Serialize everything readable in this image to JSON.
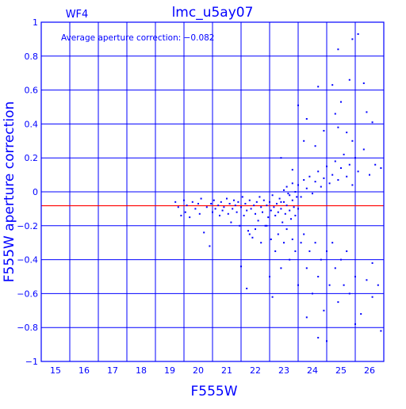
{
  "chart_data": {
    "type": "scatter",
    "title": "lmc_u5ay07",
    "chip_label": "WF4",
    "annotation": "Average aperture correction: −0.082",
    "xlabel": "F555W",
    "ylabel": "F555W aperture correction",
    "xlim": [
      14,
      26
    ],
    "ylim": [
      -1,
      1
    ],
    "xticks": [
      15,
      16,
      17,
      18,
      19,
      20,
      21,
      22,
      23,
      24,
      25,
      26
    ],
    "yticks": [
      -1,
      -0.8,
      -0.6,
      -0.4,
      -0.2,
      0,
      0.2,
      0.4,
      0.6,
      0.8,
      1
    ],
    "ytick_labels": [
      "−1",
      "−0.8",
      "−0.6",
      "−0.4",
      "−0.2",
      "0",
      "0.2",
      "0.4",
      "0.6",
      "0.8",
      "1"
    ],
    "grid": true,
    "reference_line": {
      "y": -0.082,
      "color": "#ff0000"
    },
    "point_color": "#0000ff",
    "axis_color": "#0000ff",
    "series": [
      {
        "values": [
          [
            18.7,
            -0.06
          ],
          [
            18.8,
            -0.09
          ],
          [
            18.9,
            -0.14
          ],
          [
            19.0,
            -0.05
          ],
          [
            19.05,
            -0.12
          ],
          [
            19.1,
            -0.08
          ],
          [
            19.2,
            -0.15
          ],
          [
            19.3,
            -0.06
          ],
          [
            19.4,
            -0.1
          ],
          [
            19.5,
            -0.07
          ],
          [
            19.55,
            -0.13
          ],
          [
            19.6,
            -0.04
          ],
          [
            19.7,
            -0.24
          ],
          [
            19.8,
            -0.09
          ],
          [
            19.9,
            -0.32
          ],
          [
            19.95,
            -0.07
          ],
          [
            20.0,
            -0.12
          ],
          [
            20.05,
            -0.05
          ],
          [
            20.1,
            -0.1
          ],
          [
            20.2,
            -0.08
          ],
          [
            20.25,
            -0.14
          ],
          [
            20.3,
            -0.06
          ],
          [
            20.35,
            -0.11
          ],
          [
            20.4,
            -0.09
          ],
          [
            20.5,
            -0.04
          ],
          [
            20.55,
            -0.13
          ],
          [
            20.6,
            -0.07
          ],
          [
            20.65,
            -0.18
          ],
          [
            20.7,
            -0.1
          ],
          [
            20.75,
            -0.05
          ],
          [
            20.8,
            -0.08
          ],
          [
            20.85,
            -0.12
          ],
          [
            20.9,
            -0.06
          ],
          [
            20.95,
            -0.2
          ],
          [
            21.0,
            -0.09
          ],
          [
            21.05,
            -0.03
          ],
          [
            21.1,
            -0.14
          ],
          [
            21.15,
            -0.07
          ],
          [
            21.2,
            -0.11
          ],
          [
            21.25,
            -0.23
          ],
          [
            21.3,
            -0.05
          ],
          [
            21.35,
            -0.1
          ],
          [
            21.4,
            -0.27
          ],
          [
            21.45,
            -0.08
          ],
          [
            21.5,
            -0.13
          ],
          [
            21.55,
            -0.06
          ],
          [
            21.6,
            -0.17
          ],
          [
            21.65,
            -0.03
          ],
          [
            21.7,
            -0.09
          ],
          [
            21.75,
            -0.12
          ],
          [
            21.8,
            -0.05
          ],
          [
            21.85,
            -0.2
          ],
          [
            21.9,
            -0.08
          ],
          [
            21.95,
            -0.15
          ],
          [
            22.0,
            -0.06
          ],
          [
            22.05,
            -0.11
          ],
          [
            22.1,
            -0.02
          ],
          [
            22.15,
            -0.09
          ],
          [
            22.2,
            -0.14
          ],
          [
            22.25,
            -0.07
          ],
          [
            22.3,
            -0.12
          ],
          [
            22.35,
            -0.04
          ],
          [
            22.4,
            -0.1
          ],
          [
            22.45,
            -0.18
          ],
          [
            22.5,
            -0.06
          ],
          [
            22.55,
            -0.13
          ],
          [
            22.6,
            -0.08
          ],
          [
            22.65,
            -0.01
          ],
          [
            22.7,
            -0.11
          ],
          [
            22.75,
            -0.16
          ],
          [
            22.8,
            -0.05
          ],
          [
            22.85,
            -0.09
          ],
          [
            22.9,
            -0.14
          ],
          [
            22.95,
            -0.03
          ],
          [
            23.0,
            -0.1
          ],
          [
            21.0,
            -0.44
          ],
          [
            21.3,
            -0.25
          ],
          [
            21.5,
            -0.22
          ],
          [
            21.7,
            -0.3
          ],
          [
            21.9,
            -0.2
          ],
          [
            22.0,
            -0.5
          ],
          [
            22.05,
            -0.28
          ],
          [
            22.1,
            -0.62
          ],
          [
            22.2,
            -0.35
          ],
          [
            22.3,
            -0.25
          ],
          [
            22.4,
            -0.45
          ],
          [
            22.5,
            -0.3
          ],
          [
            22.6,
            -0.22
          ],
          [
            22.7,
            -0.4
          ],
          [
            22.8,
            -0.28
          ],
          [
            22.9,
            -0.35
          ],
          [
            23.0,
            -0.55
          ],
          [
            23.1,
            -0.3
          ],
          [
            23.2,
            -0.25
          ],
          [
            23.3,
            -0.45
          ],
          [
            23.4,
            -0.35
          ],
          [
            23.5,
            -0.6
          ],
          [
            23.6,
            -0.3
          ],
          [
            23.7,
            -0.5
          ],
          [
            23.8,
            -0.4
          ],
          [
            23.9,
            -0.7
          ],
          [
            24.0,
            -0.35
          ],
          [
            24.1,
            -0.55
          ],
          [
            24.2,
            -0.3
          ],
          [
            24.3,
            -0.45
          ],
          [
            24.4,
            -0.65
          ],
          [
            24.5,
            -0.4
          ],
          [
            24.6,
            -0.55
          ],
          [
            24.7,
            -0.35
          ],
          [
            24.8,
            -0.6
          ],
          [
            25.0,
            -0.5
          ],
          [
            25.2,
            -0.72
          ],
          [
            25.4,
            -0.52
          ],
          [
            25.6,
            -0.42
          ],
          [
            25.8,
            -0.55
          ],
          [
            22.4,
            -0.06
          ],
          [
            22.5,
            0.01
          ],
          [
            22.6,
            0.03
          ],
          [
            22.7,
            -0.02
          ],
          [
            22.8,
            0.05
          ],
          [
            22.9,
            0.0
          ],
          [
            23.0,
            0.04
          ],
          [
            23.1,
            -0.03
          ],
          [
            23.2,
            0.07
          ],
          [
            23.3,
            0.02
          ],
          [
            23.4,
            0.09
          ],
          [
            23.5,
            -0.01
          ],
          [
            23.6,
            0.06
          ],
          [
            23.7,
            0.12
          ],
          [
            23.8,
            0.03
          ],
          [
            23.9,
            0.08
          ],
          [
            24.0,
            0.15
          ],
          [
            24.1,
            0.05
          ],
          [
            24.2,
            0.1
          ],
          [
            24.3,
            0.18
          ],
          [
            24.4,
            0.07
          ],
          [
            24.5,
            0.14
          ],
          [
            24.6,
            0.22
          ],
          [
            24.7,
            0.09
          ],
          [
            24.8,
            0.16
          ],
          [
            24.9,
            0.04
          ],
          [
            25.0,
            0.2
          ],
          [
            25.1,
            0.12
          ],
          [
            25.3,
            0.25
          ],
          [
            25.5,
            0.1
          ],
          [
            22.4,
            0.2
          ],
          [
            22.8,
            0.13
          ],
          [
            23.0,
            0.51
          ],
          [
            23.2,
            0.3
          ],
          [
            23.3,
            0.43
          ],
          [
            23.6,
            0.27
          ],
          [
            23.7,
            0.62
          ],
          [
            23.9,
            0.36
          ],
          [
            24.2,
            0.63
          ],
          [
            24.3,
            0.46
          ],
          [
            24.4,
            0.38
          ],
          [
            24.5,
            0.53
          ],
          [
            24.7,
            0.35
          ],
          [
            24.8,
            0.66
          ],
          [
            24.9,
            0.3
          ],
          [
            24.4,
            0.84
          ],
          [
            24.9,
            0.9
          ],
          [
            25.1,
            0.93
          ],
          [
            25.3,
            0.64
          ],
          [
            25.4,
            0.47
          ],
          [
            25.6,
            0.41
          ],
          [
            25.7,
            0.16
          ],
          [
            25.9,
            0.14
          ],
          [
            24.0,
            -0.88
          ],
          [
            23.7,
            -0.86
          ],
          [
            25.0,
            -0.78
          ],
          [
            25.9,
            -0.82
          ],
          [
            23.3,
            -0.74
          ],
          [
            25.6,
            -0.62
          ],
          [
            21.2,
            -0.57
          ]
        ]
      }
    ]
  }
}
